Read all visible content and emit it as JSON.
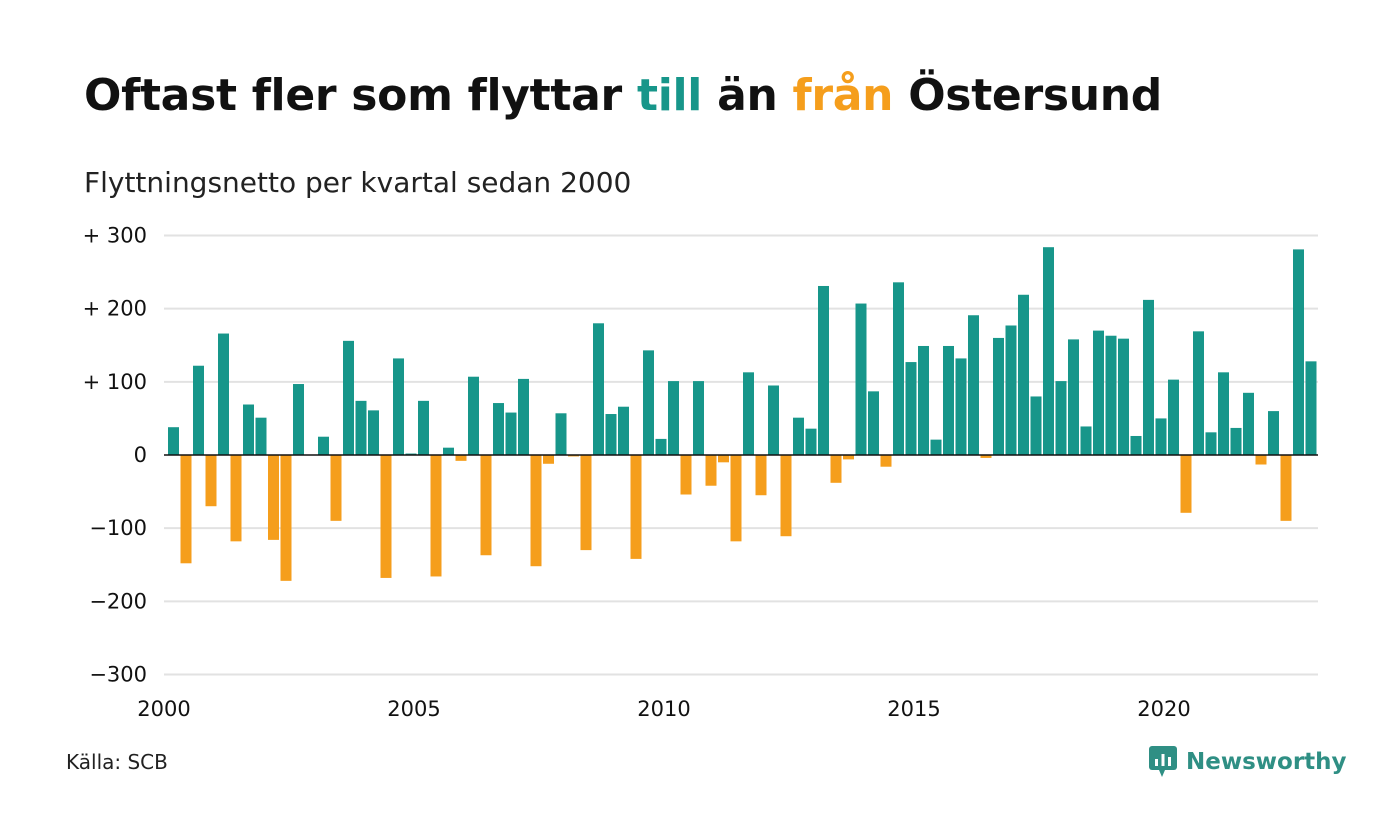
{
  "title": {
    "part1": "Oftast fler som flyttar ",
    "to_word": "till",
    "part2": " än ",
    "from_word": "från",
    "part3": " Östersund"
  },
  "subtitle": "Flyttningsnetto per kvartal sedan 2000",
  "source": "Källa: SCB",
  "brand": "Newsworthy",
  "colors": {
    "positive": "#17968a",
    "negative": "#f59e1c",
    "grid": "#e2e2e2",
    "zero_line": "#111111"
  },
  "chart_data": {
    "type": "bar",
    "title": "Oftast fler som flyttar till än från Östersund",
    "subtitle": "Flyttningsnetto per kvartal sedan 2000",
    "xlabel": "",
    "ylabel": "",
    "x_start": 2000,
    "quarters_per_year": 4,
    "x_ticks": [
      "2000",
      "2005",
      "2010",
      "2015",
      "2020"
    ],
    "y_ticks": [
      "+ 300",
      "+ 200",
      "+ 100",
      "0",
      "−100",
      "−200",
      "−300"
    ],
    "ylim": [
      -300,
      300
    ],
    "grid": true,
    "values": [
      38,
      -148,
      122,
      -70,
      166,
      -118,
      69,
      51,
      -116,
      -172,
      97,
      0,
      25,
      -90,
      156,
      74,
      61,
      -168,
      132,
      2,
      74,
      -166,
      10,
      -8,
      107,
      -137,
      71,
      58,
      104,
      -152,
      -12,
      57,
      -2,
      -130,
      180,
      56,
      66,
      -142,
      143,
      22,
      101,
      -54,
      101,
      -42,
      -10,
      -118,
      113,
      -55,
      95,
      -111,
      51,
      36,
      231,
      -38,
      -6,
      207,
      87,
      -16,
      236,
      127,
      149,
      21,
      149,
      132,
      191,
      -4,
      160,
      177,
      219,
      80,
      284,
      101,
      158,
      39,
      170,
      163,
      159,
      26,
      212,
      50,
      103,
      -79,
      169,
      31,
      113,
      37,
      85,
      -13,
      60,
      -90,
      281,
      128
    ]
  }
}
